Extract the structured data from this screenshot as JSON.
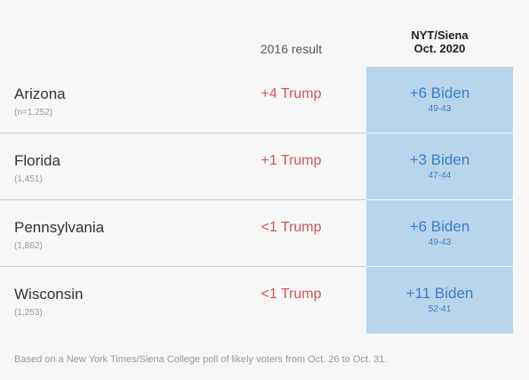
{
  "chart_data": {
    "type": "table",
    "columns": {
      "result_2016": "2016 result",
      "poll_line1": "NYT/Siena",
      "poll_line2": "Oct. 2020"
    },
    "rows": [
      {
        "state": "Arizona",
        "sample": "(n=1,252)",
        "result_2016": "+4 Trump",
        "poll_margin": "+6 Biden",
        "poll_split": "49-43"
      },
      {
        "state": "Florida",
        "sample": "(1,451)",
        "result_2016": "+1 Trump",
        "poll_margin": "+3 Biden",
        "poll_split": "47-44"
      },
      {
        "state": "Pennsylvania",
        "sample": "(1,862)",
        "result_2016": "<1 Trump",
        "poll_margin": "+6 Biden",
        "poll_split": "49-43"
      },
      {
        "state": "Wisconsin",
        "sample": "(1,253)",
        "result_2016": "<1 Trump",
        "poll_margin": "+11 Biden",
        "poll_split": "52-41"
      }
    ],
    "colors": {
      "trump": "#d0555a",
      "biden": "#3a7fc4",
      "poll_fill": "#b9d5eb"
    }
  },
  "footnote": "Based on a New York Times/Siena College poll of likely voters from Oct. 26 to Oct. 31."
}
